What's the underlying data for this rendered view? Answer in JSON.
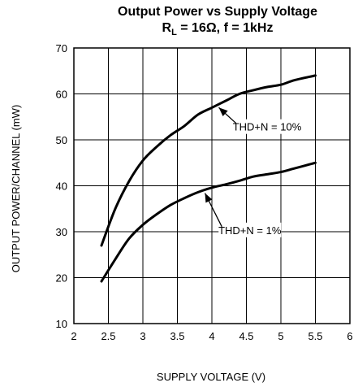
{
  "chart_data": {
    "type": "line",
    "title": "Output Power vs Supply Voltage",
    "subtitle_prefix": "R",
    "subtitle_sub": "L",
    "subtitle_suffix": " = 16Ω, f = 1kHz",
    "xlabel": "SUPPLY VOLTAGE (V)",
    "ylabel": "OUTPUT POWER/CHANNEL (mW)",
    "xlim": [
      2,
      6
    ],
    "ylim": [
      10,
      70
    ],
    "x_ticks": [
      "2",
      "2.5",
      "3",
      "3.5",
      "4",
      "4.5",
      "5",
      "5.5",
      "6"
    ],
    "y_ticks": [
      "10",
      "20",
      "30",
      "40",
      "50",
      "60",
      "70"
    ],
    "grid": true,
    "series": [
      {
        "name": "THD+N = 10%",
        "x": [
          2.4,
          2.6,
          2.8,
          3.0,
          3.2,
          3.4,
          3.6,
          3.8,
          4.0,
          4.2,
          4.4,
          4.6,
          4.8,
          5.0,
          5.2,
          5.5
        ],
        "y": [
          27,
          35,
          41,
          45.5,
          48.5,
          51,
          53,
          55.5,
          57,
          58.5,
          60,
          60.8,
          61.5,
          62,
          63,
          64
        ]
      },
      {
        "name": "THD+N = 1%",
        "x": [
          2.4,
          2.6,
          2.8,
          3.0,
          3.2,
          3.4,
          3.6,
          3.8,
          4.0,
          4.2,
          4.4,
          4.6,
          4.8,
          5.0,
          5.2,
          5.5
        ],
        "y": [
          19.2,
          24,
          28.5,
          31.5,
          33.8,
          35.8,
          37.3,
          38.6,
          39.6,
          40.3,
          41.1,
          42,
          42.5,
          43,
          43.8,
          45
        ]
      }
    ],
    "annotations": [
      {
        "text": "THD+N = 10%",
        "series": 0,
        "at_x": 4.1,
        "label_x": 4.8,
        "label_y": 52
      },
      {
        "text": "THD+N = 1%",
        "series": 1,
        "at_x": 3.9,
        "label_x": 4.55,
        "label_y": 29.5
      }
    ]
  }
}
